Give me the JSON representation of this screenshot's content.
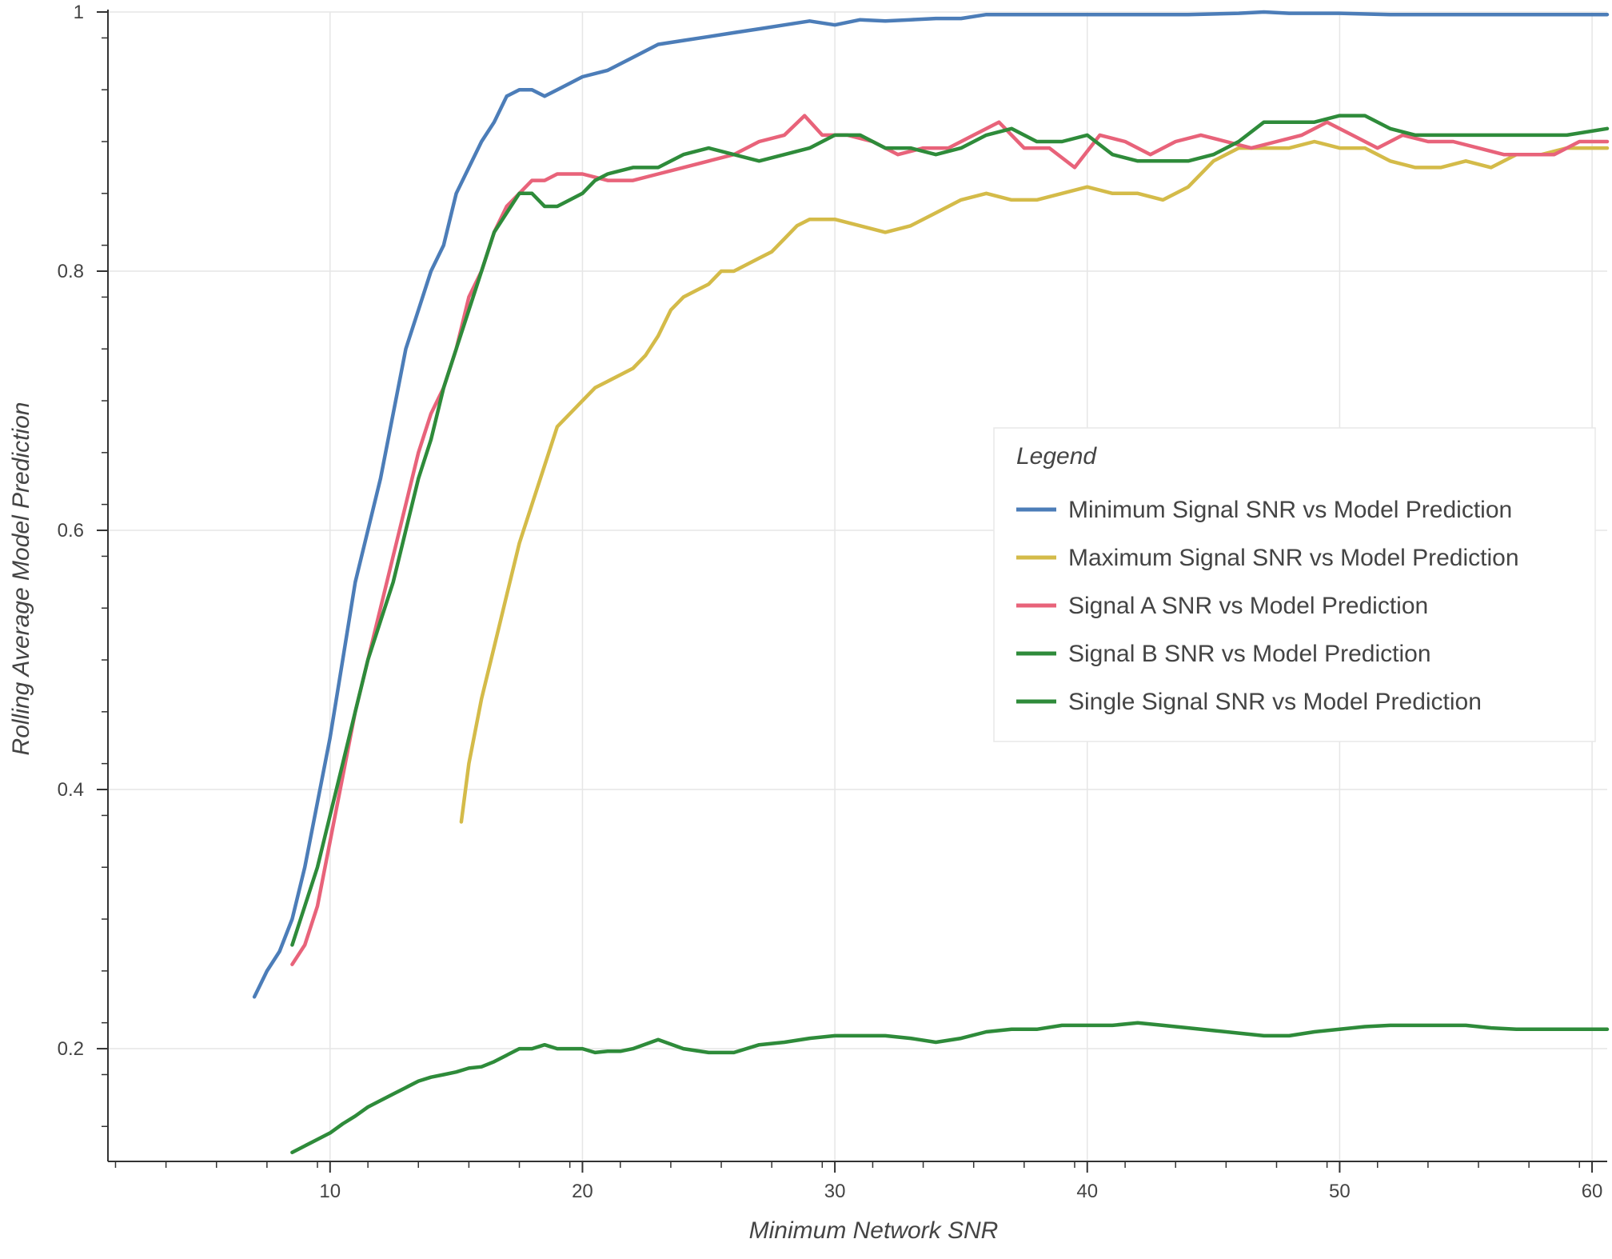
{
  "chart_data": {
    "type": "line",
    "title": "",
    "xlabel": "Minimum Network SNR",
    "ylabel": "Rolling Average Model Prediction",
    "xlim": [
      1.2,
      60.6
    ],
    "ylim": [
      0.113,
      1.0
    ],
    "x_ticks": [
      10,
      20,
      30,
      40,
      50,
      60
    ],
    "x_tick_labels": [
      "10",
      "20",
      "30",
      "40",
      "50",
      "60"
    ],
    "y_ticks": [
      0.2,
      0.4,
      0.6,
      0.8,
      1.0
    ],
    "y_tick_labels": [
      "0.2",
      "0.4",
      "0.6",
      "0.8",
      "1"
    ],
    "grid": true,
    "legend": {
      "title": "Legend",
      "placement": "center-right"
    },
    "series": [
      {
        "name": "Minimum Signal SNR vs Model Prediction",
        "color": "#4c7db8",
        "x": [
          7.0,
          7.5,
          8.0,
          8.5,
          9.0,
          9.5,
          10.0,
          10.5,
          11.0,
          11.5,
          12.0,
          12.5,
          13.0,
          13.5,
          14.0,
          14.5,
          15.0,
          15.5,
          16.0,
          16.5,
          17.0,
          17.5,
          18.0,
          18.5,
          19.0,
          19.5,
          20.0,
          21.0,
          22.0,
          23.0,
          24.0,
          25.0,
          26.0,
          27.0,
          28.0,
          29.0,
          30.0,
          31.0,
          32.0,
          33.0,
          34.0,
          35.0,
          36.0,
          38.0,
          40.0,
          42.0,
          44.0,
          46.0,
          47.0,
          48.0,
          50.0,
          52.0,
          54.0,
          56.0,
          58.0,
          60.6
        ],
        "y": [
          0.24,
          0.26,
          0.275,
          0.3,
          0.34,
          0.39,
          0.44,
          0.5,
          0.56,
          0.6,
          0.64,
          0.69,
          0.74,
          0.77,
          0.8,
          0.82,
          0.86,
          0.88,
          0.9,
          0.915,
          0.935,
          0.94,
          0.94,
          0.935,
          0.94,
          0.945,
          0.95,
          0.955,
          0.965,
          0.975,
          0.978,
          0.981,
          0.984,
          0.987,
          0.99,
          0.993,
          0.99,
          0.994,
          0.993,
          0.994,
          0.995,
          0.995,
          0.998,
          0.998,
          0.998,
          0.998,
          0.998,
          0.999,
          1.0,
          0.999,
          0.999,
          0.998,
          0.998,
          0.998,
          0.998,
          0.998
        ]
      },
      {
        "name": "Maximum Signal SNR vs Model Prediction",
        "color": "#d4bb49",
        "x": [
          15.2,
          15.5,
          16.0,
          16.5,
          17.0,
          17.5,
          18.0,
          18.5,
          19.0,
          19.5,
          20.0,
          20.5,
          21.0,
          21.5,
          22.0,
          22.5,
          23.0,
          23.5,
          24.0,
          24.5,
          25.0,
          25.5,
          26.0,
          26.5,
          27.0,
          27.5,
          28.0,
          28.5,
          29.0,
          30.0,
          31.0,
          32.0,
          33.0,
          34.0,
          35.0,
          36.0,
          37.0,
          38.0,
          39.0,
          40.0,
          41.0,
          42.0,
          43.0,
          44.0,
          45.0,
          46.0,
          47.0,
          48.0,
          49.0,
          50.0,
          51.0,
          52.0,
          53.0,
          54.0,
          55.0,
          56.0,
          57.0,
          58.0,
          59.0,
          60.6
        ],
        "y": [
          0.375,
          0.42,
          0.47,
          0.51,
          0.55,
          0.59,
          0.62,
          0.65,
          0.68,
          0.69,
          0.7,
          0.71,
          0.715,
          0.72,
          0.725,
          0.735,
          0.75,
          0.77,
          0.78,
          0.785,
          0.79,
          0.8,
          0.8,
          0.805,
          0.81,
          0.815,
          0.825,
          0.835,
          0.84,
          0.84,
          0.835,
          0.83,
          0.835,
          0.845,
          0.855,
          0.86,
          0.855,
          0.855,
          0.86,
          0.865,
          0.86,
          0.86,
          0.855,
          0.865,
          0.885,
          0.895,
          0.895,
          0.895,
          0.9,
          0.895,
          0.895,
          0.885,
          0.88,
          0.88,
          0.885,
          0.88,
          0.89,
          0.89,
          0.895,
          0.895
        ]
      },
      {
        "name": "Signal A SNR vs Model Prediction",
        "color": "#e8637a",
        "x": [
          8.5,
          9.0,
          9.5,
          10.0,
          10.5,
          11.0,
          11.5,
          12.0,
          12.5,
          13.0,
          13.5,
          14.0,
          14.5,
          15.0,
          15.5,
          16.0,
          16.5,
          17.0,
          17.5,
          18.0,
          18.5,
          19.0,
          19.5,
          20.0,
          21.0,
          22.0,
          23.0,
          24.0,
          25.0,
          26.0,
          27.0,
          28.0,
          28.8,
          29.5,
          30.5,
          31.5,
          32.5,
          33.5,
          34.5,
          35.5,
          36.5,
          37.5,
          38.5,
          39.5,
          40.5,
          41.5,
          42.5,
          43.5,
          44.5,
          45.5,
          46.5,
          47.5,
          48.5,
          49.5,
          50.5,
          51.5,
          52.5,
          53.5,
          54.5,
          55.5,
          56.5,
          57.5,
          58.5,
          59.5,
          60.6
        ],
        "y": [
          0.265,
          0.28,
          0.31,
          0.36,
          0.41,
          0.46,
          0.5,
          0.54,
          0.58,
          0.62,
          0.66,
          0.69,
          0.71,
          0.74,
          0.78,
          0.8,
          0.83,
          0.85,
          0.86,
          0.87,
          0.87,
          0.875,
          0.875,
          0.875,
          0.87,
          0.87,
          0.875,
          0.88,
          0.885,
          0.89,
          0.9,
          0.905,
          0.92,
          0.905,
          0.905,
          0.9,
          0.89,
          0.895,
          0.895,
          0.905,
          0.915,
          0.895,
          0.895,
          0.88,
          0.905,
          0.9,
          0.89,
          0.9,
          0.905,
          0.9,
          0.895,
          0.9,
          0.905,
          0.915,
          0.905,
          0.895,
          0.905,
          0.9,
          0.9,
          0.895,
          0.89,
          0.89,
          0.89,
          0.9,
          0.9
        ]
      },
      {
        "name": "Signal B SNR vs Model Prediction",
        "color": "#2e8b3a",
        "x": [
          8.5,
          9.0,
          9.5,
          10.0,
          10.5,
          11.0,
          11.5,
          12.0,
          12.5,
          13.0,
          13.5,
          14.0,
          14.5,
          15.0,
          15.5,
          16.0,
          16.5,
          17.0,
          17.5,
          18.0,
          18.5,
          19.0,
          19.5,
          20.0,
          20.5,
          21.0,
          22.0,
          23.0,
          24.0,
          25.0,
          26.0,
          27.0,
          28.0,
          29.0,
          30.0,
          31.0,
          32.0,
          33.0,
          34.0,
          35.0,
          36.0,
          37.0,
          38.0,
          39.0,
          40.0,
          41.0,
          42.0,
          43.0,
          44.0,
          45.0,
          46.0,
          47.0,
          48.0,
          49.0,
          50.0,
          51.0,
          52.0,
          53.0,
          54.0,
          55.0,
          56.0,
          57.0,
          58.0,
          59.0,
          60.6
        ],
        "y": [
          0.28,
          0.31,
          0.34,
          0.38,
          0.42,
          0.46,
          0.5,
          0.53,
          0.56,
          0.6,
          0.64,
          0.67,
          0.71,
          0.74,
          0.77,
          0.8,
          0.83,
          0.845,
          0.86,
          0.86,
          0.85,
          0.85,
          0.855,
          0.86,
          0.87,
          0.875,
          0.88,
          0.88,
          0.89,
          0.895,
          0.89,
          0.885,
          0.89,
          0.895,
          0.905,
          0.905,
          0.895,
          0.895,
          0.89,
          0.895,
          0.905,
          0.91,
          0.9,
          0.9,
          0.905,
          0.89,
          0.885,
          0.885,
          0.885,
          0.89,
          0.9,
          0.915,
          0.915,
          0.915,
          0.92,
          0.92,
          0.91,
          0.905,
          0.905,
          0.905,
          0.905,
          0.905,
          0.905,
          0.905,
          0.91
        ]
      },
      {
        "name": "Single Signal SNR vs Model Prediction",
        "color": "#2e8b3a",
        "x": [
          8.5,
          9.0,
          9.5,
          10.0,
          10.5,
          11.0,
          11.5,
          12.0,
          12.5,
          13.0,
          13.5,
          14.0,
          14.5,
          15.0,
          15.5,
          16.0,
          16.5,
          17.0,
          17.5,
          18.0,
          18.5,
          19.0,
          19.5,
          20.0,
          20.5,
          21.0,
          21.5,
          22.0,
          23.0,
          24.0,
          25.0,
          26.0,
          27.0,
          28.0,
          29.0,
          30.0,
          31.0,
          32.0,
          33.0,
          34.0,
          35.0,
          36.0,
          37.0,
          38.0,
          39.0,
          40.0,
          41.0,
          42.0,
          43.0,
          44.0,
          45.0,
          46.0,
          47.0,
          48.0,
          49.0,
          50.0,
          51.0,
          52.0,
          53.0,
          54.0,
          55.0,
          56.0,
          57.0,
          58.0,
          59.0,
          60.6
        ],
        "y": [
          0.12,
          0.125,
          0.13,
          0.135,
          0.142,
          0.148,
          0.155,
          0.16,
          0.165,
          0.17,
          0.175,
          0.178,
          0.18,
          0.182,
          0.185,
          0.186,
          0.19,
          0.195,
          0.2,
          0.2,
          0.203,
          0.2,
          0.2,
          0.2,
          0.197,
          0.198,
          0.198,
          0.2,
          0.207,
          0.2,
          0.197,
          0.197,
          0.203,
          0.205,
          0.208,
          0.21,
          0.21,
          0.21,
          0.208,
          0.205,
          0.208,
          0.213,
          0.215,
          0.215,
          0.218,
          0.218,
          0.218,
          0.22,
          0.218,
          0.216,
          0.214,
          0.212,
          0.21,
          0.21,
          0.213,
          0.215,
          0.217,
          0.218,
          0.218,
          0.218,
          0.218,
          0.216,
          0.215,
          0.215,
          0.215,
          0.215
        ]
      }
    ]
  }
}
